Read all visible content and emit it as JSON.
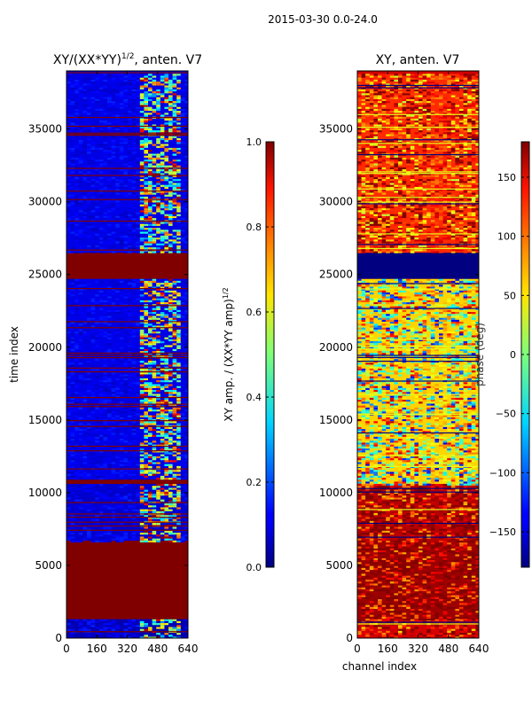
{
  "figure": {
    "suptitle": "2015-03-30 0.0-24.0"
  },
  "chart_data": [
    {
      "type": "heatmap",
      "title": "XY/(XX*YY)^1/2, anten. V7",
      "title_main": "XY/(XX*YY)",
      "title_exp": "1/2",
      "title_tail": ", anten. V7",
      "xlabel": "",
      "ylabel": "time index",
      "xlim": [
        0,
        640
      ],
      "ylim": [
        0,
        39000
      ],
      "x_ticks": [
        0,
        160,
        320,
        480,
        640
      ],
      "y_ticks": [
        0,
        5000,
        10000,
        15000,
        20000,
        25000,
        30000,
        35000
      ],
      "colorbar": {
        "label": "XY amp. / (XX*YY amp)^1/2",
        "label_main": "XY amp. / (XX*YY amp)",
        "label_exp": "1/2",
        "range": [
          0.0,
          1.0
        ],
        "ticks": [
          "0.0",
          "0.2",
          "0.4",
          "0.6",
          "0.8",
          "1.0"
        ],
        "tick_values": [
          0.0,
          0.2,
          0.4,
          0.6,
          0.8,
          1.0
        ]
      },
      "regions": [
        {
          "y0": 0,
          "y1": 1300,
          "value": 0.05,
          "note": "low amplitude band, bright channels 380-600"
        },
        {
          "y0": 1300,
          "y1": 6700,
          "value": 1.0,
          "note": "saturated block"
        },
        {
          "y0": 6700,
          "y1": 10600,
          "value": 0.08,
          "note": "low amplitude band, bright channels 380-600"
        },
        {
          "y0": 10600,
          "y1": 10900,
          "value": 1.0
        },
        {
          "y0": 10900,
          "y1": 24700,
          "value": 0.1,
          "note": "many saturated horizontal lines"
        },
        {
          "y0": 24700,
          "y1": 26500,
          "value": 1.0,
          "note": "saturated block"
        },
        {
          "y0": 26500,
          "y1": 38800,
          "value": 0.1,
          "note": "bright channels 380-600"
        }
      ]
    },
    {
      "type": "heatmap",
      "title": "XY, anten. V7",
      "xlabel": "channel index",
      "ylabel": "",
      "xlim": [
        0,
        640
      ],
      "ylim": [
        0,
        39000
      ],
      "x_ticks": [
        0,
        160,
        320,
        480,
        640
      ],
      "y_ticks": [
        0,
        5000,
        10000,
        15000,
        20000,
        25000,
        30000,
        35000
      ],
      "colorbar": {
        "label": "phase (deg)",
        "range": [
          -180,
          180
        ],
        "ticks": [
          "−150",
          "−100",
          "−50",
          "0",
          "50",
          "100",
          "150"
        ],
        "tick_values": [
          -150,
          -100,
          -50,
          0,
          50,
          100,
          150
        ]
      },
      "regions": [
        {
          "y0": 0,
          "y1": 1300,
          "value": 150
        },
        {
          "y0": 1300,
          "y1": 6700,
          "value": 170,
          "note": "uniform phase block"
        },
        {
          "y0": 6700,
          "y1": 10600,
          "value": 160
        },
        {
          "y0": 10600,
          "y1": 24700,
          "value": 60,
          "note": "mixed phase bands"
        },
        {
          "y0": 24700,
          "y1": 26500,
          "value": -180,
          "note": "dark blue block"
        },
        {
          "y0": 26500,
          "y1": 38800,
          "value": 120,
          "note": "striped phase pattern"
        }
      ]
    }
  ]
}
